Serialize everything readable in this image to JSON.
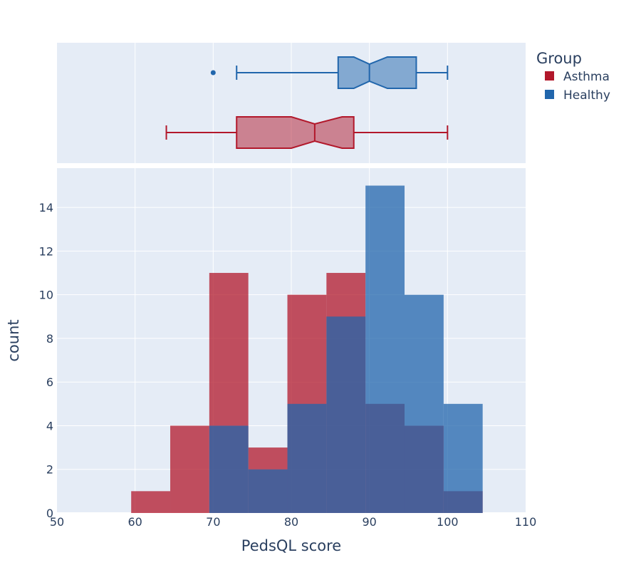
{
  "chart_data": {
    "type": "histogram",
    "xlabel": "PedsQL score",
    "ylabel": "count",
    "xlim": [
      50,
      110
    ],
    "x_ticks": [
      50,
      60,
      70,
      80,
      90,
      100,
      110
    ],
    "ylim": [
      0,
      15.8
    ],
    "y_ticks": [
      0,
      2,
      4,
      6,
      8,
      10,
      12,
      14
    ],
    "bin_width": 5,
    "bin_starts": [
      59.5,
      64.5,
      69.5,
      74.5,
      79.5,
      84.5,
      89.5,
      94.5,
      99.5
    ],
    "barmode": "overlay",
    "grid": true,
    "legend": {
      "title": "Group",
      "position": "top-right"
    },
    "series": [
      {
        "name": "Asthma",
        "color": "#b2182b",
        "counts": [
          1,
          4,
          11,
          3,
          10,
          11,
          5,
          4,
          1
        ],
        "box": {
          "min": 64,
          "q1": 73,
          "median": 83,
          "q3": 88,
          "max": 100,
          "notch_low": 80,
          "notch_high": 86.5,
          "outliers": []
        }
      },
      {
        "name": "Healthy",
        "color": "#2166ac",
        "counts": [
          0,
          0,
          4,
          2,
          5,
          9,
          15,
          10,
          5
        ],
        "box": {
          "min": 73,
          "q1": 86,
          "median": 90,
          "q3": 96,
          "max": 100,
          "notch_low": 88,
          "notch_high": 92.3,
          "outliers": [
            70
          ]
        }
      }
    ]
  }
}
